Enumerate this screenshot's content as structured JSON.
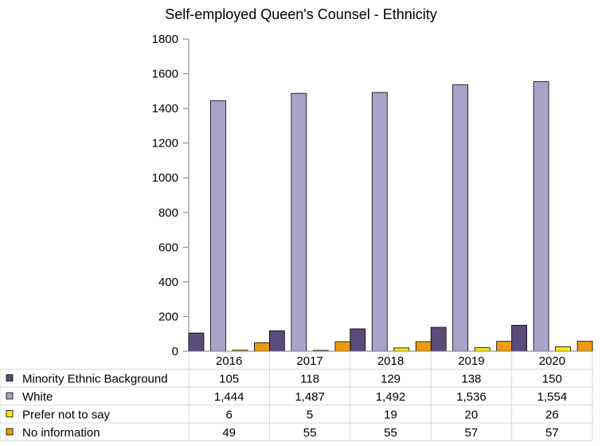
{
  "chart_data": {
    "type": "bar",
    "title": "Self-employed Queen's Counsel - Ethnicity",
    "categories": [
      "2016",
      "2017",
      "2018",
      "2019",
      "2020"
    ],
    "ylim": [
      0,
      1800
    ],
    "yticks": [
      "0",
      "200",
      "400",
      "600",
      "800",
      "1000",
      "1200",
      "1400",
      "1600",
      "1800"
    ],
    "grid": false,
    "legend": "data-table-below",
    "series": [
      {
        "name": "Minority Ethnic Background",
        "color": "#5b4a7c",
        "values": [
          105,
          118,
          129,
          138,
          150
        ],
        "labels": [
          "105",
          "118",
          "129",
          "138",
          "150"
        ]
      },
      {
        "name": "White",
        "color": "#a8a3c9",
        "values": [
          1444,
          1487,
          1492,
          1536,
          1554
        ],
        "labels": [
          "1,444",
          "1,487",
          "1,492",
          "1,536",
          "1,554"
        ]
      },
      {
        "name": "Prefer not to say",
        "color": "#fde910",
        "values": [
          6,
          5,
          19,
          20,
          26
        ],
        "labels": [
          "6",
          "5",
          "19",
          "20",
          "26"
        ]
      },
      {
        "name": "No information",
        "color": "#ec9b0c",
        "values": [
          49,
          55,
          55,
          57,
          57
        ],
        "labels": [
          "49",
          "55",
          "55",
          "57",
          "57"
        ]
      }
    ]
  }
}
